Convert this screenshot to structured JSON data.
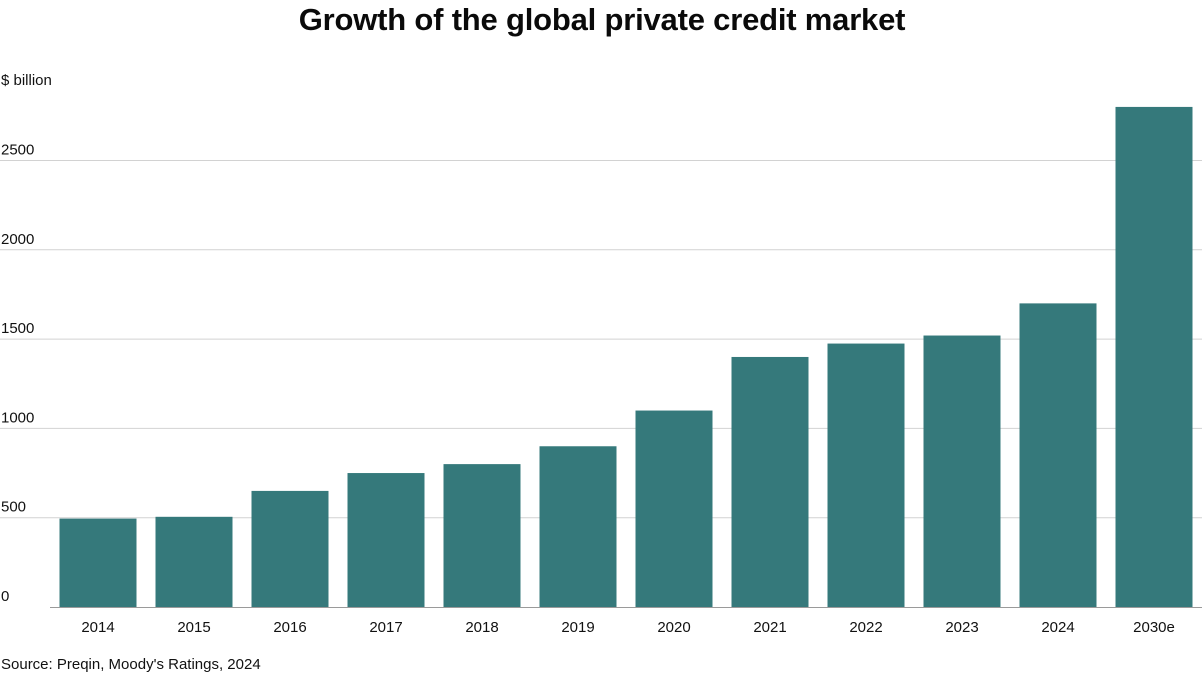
{
  "chart_data": {
    "type": "bar",
    "title": "Growth of the global private credit market",
    "ylabel": "$ billion",
    "xlabel": "",
    "source": "Source: Preqin, Moody's Ratings, 2024",
    "categories": [
      "2014",
      "2015",
      "2016",
      "2017",
      "2018",
      "2019",
      "2020",
      "2021",
      "2022",
      "2023",
      "2024",
      "2030e"
    ],
    "values": [
      495,
      505,
      650,
      750,
      800,
      900,
      1100,
      1400,
      1475,
      1520,
      1700,
      2800
    ],
    "ylim": [
      0,
      2800
    ],
    "yticks": [
      "0",
      "500",
      "1000",
      "1500",
      "2000",
      "2500"
    ],
    "grid": true,
    "colors": {
      "bar": "#35797b",
      "grid": "#d2d2d2",
      "axis": "#9a9a9a"
    }
  }
}
